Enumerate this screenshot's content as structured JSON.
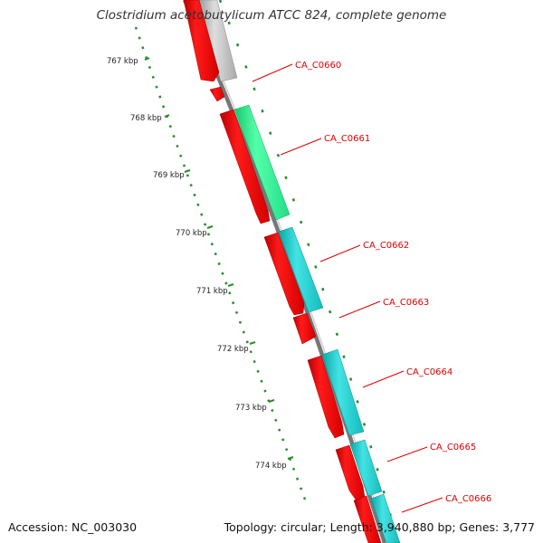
{
  "title": "Clostridium acetobutylicum ATCC 824, complete genome",
  "footer": {
    "accession": "Accession: NC_003030",
    "summary": "Topology: circular; Length: 3,940,880 bp; Genes: 3,777"
  },
  "colors": {
    "backbone": "#7a7a7a",
    "tick": "#2a7f2a",
    "cds": "#ff0000",
    "gene_label": "#dd0000",
    "gray_feature": "#c0c0c0",
    "green_feature": "#33ff99",
    "cyan_feature": "#22cccc"
  },
  "scale_labels": [
    {
      "text": "767 kbp",
      "kbp": 767
    },
    {
      "text": "768 kbp",
      "kbp": 768
    },
    {
      "text": "769 kbp",
      "kbp": 769
    },
    {
      "text": "770 kbp",
      "kbp": 770
    },
    {
      "text": "771 kbp",
      "kbp": 771
    },
    {
      "text": "772 kbp",
      "kbp": 772
    },
    {
      "text": "773 kbp",
      "kbp": 773
    },
    {
      "text": "774 kbp",
      "kbp": 774
    }
  ],
  "genes": [
    {
      "name": "CA_C0660"
    },
    {
      "name": "CA_C0661"
    },
    {
      "name": "CA_C0662"
    },
    {
      "name": "CA_C0663"
    },
    {
      "name": "CA_C0664"
    },
    {
      "name": "CA_C0665"
    },
    {
      "name": "CA_C0666"
    }
  ]
}
